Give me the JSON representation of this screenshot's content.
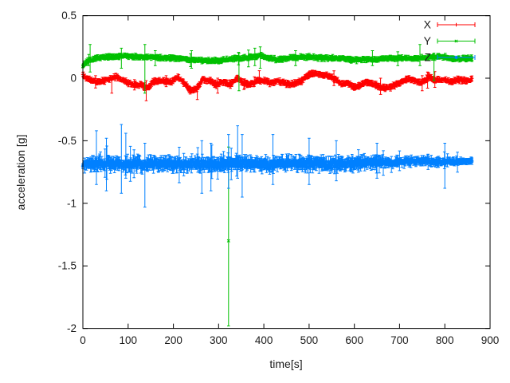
{
  "figure": {
    "background": "#ffffff",
    "border_color": "#000000",
    "text_color": "#1a1a1a"
  },
  "chart_data": {
    "type": "scatter",
    "style": "points-with-errorbars",
    "title": "",
    "xlabel": "time[s]",
    "ylabel": "acceleration [g]",
    "xlim": [
      0,
      900
    ],
    "ylim": [
      -2,
      0.5
    ],
    "grid": false,
    "xticks": [
      {
        "v": 0,
        "label": "0"
      },
      {
        "v": 100,
        "label": "100"
      },
      {
        "v": 200,
        "label": "200"
      },
      {
        "v": 300,
        "label": "300"
      },
      {
        "v": 400,
        "label": "400"
      },
      {
        "v": 500,
        "label": "500"
      },
      {
        "v": 600,
        "label": "600"
      },
      {
        "v": 700,
        "label": "700"
      },
      {
        "v": 800,
        "label": "800"
      },
      {
        "v": 900,
        "label": "900"
      }
    ],
    "yticks": [
      {
        "v": 0.5,
        "label": "0.5"
      },
      {
        "v": 0,
        "label": "0"
      },
      {
        "v": -0.5,
        "label": "-0.5"
      },
      {
        "v": -1,
        "label": "-1"
      },
      {
        "v": -1.5,
        "label": "-1.5"
      },
      {
        "v": -2,
        "label": "-2"
      }
    ],
    "legend": {
      "position": "top-right-inside",
      "entries": [
        "X",
        "Y",
        "Z"
      ]
    },
    "series": [
      {
        "name": "X",
        "color": "#ff0000",
        "marker": "plus",
        "t_start": 0,
        "t_end": 860,
        "step": 1,
        "trend": [
          [
            0,
            0.03
          ],
          [
            8,
            0
          ],
          [
            20,
            -0.02
          ],
          [
            35,
            -0.03
          ],
          [
            55,
            -0.01
          ],
          [
            75,
            0.01
          ],
          [
            90,
            -0.02
          ],
          [
            110,
            -0.05
          ],
          [
            130,
            -0.05
          ],
          [
            142,
            -0.08
          ],
          [
            155,
            -0.03
          ],
          [
            175,
            -0.02
          ],
          [
            195,
            -0.03
          ],
          [
            210,
            0.01
          ],
          [
            222,
            -0.03
          ],
          [
            238,
            -0.1
          ],
          [
            252,
            -0.08
          ],
          [
            265,
            -0.01
          ],
          [
            280,
            -0.02
          ],
          [
            295,
            -0.05
          ],
          [
            310,
            -0.03
          ],
          [
            325,
            -0.05
          ],
          [
            340,
            0
          ],
          [
            355,
            -0.04
          ],
          [
            370,
            -0.05
          ],
          [
            385,
            -0.02
          ],
          [
            400,
            -0.02
          ],
          [
            415,
            -0.04
          ],
          [
            430,
            -0.02
          ],
          [
            445,
            -0.04
          ],
          [
            460,
            -0.05
          ],
          [
            480,
            -0.03
          ],
          [
            495,
            0.02
          ],
          [
            510,
            0.04
          ],
          [
            525,
            0.03
          ],
          [
            540,
            0.02
          ],
          [
            558,
            -0.01
          ],
          [
            572,
            -0.05
          ],
          [
            585,
            -0.03
          ],
          [
            598,
            -0.07
          ],
          [
            612,
            -0.06
          ],
          [
            628,
            -0.03
          ],
          [
            645,
            -0.05
          ],
          [
            662,
            -0.08
          ],
          [
            680,
            -0.07
          ],
          [
            698,
            -0.04
          ],
          [
            715,
            -0.01
          ],
          [
            730,
            -0.01
          ],
          [
            748,
            -0.04
          ],
          [
            765,
            0.01
          ],
          [
            780,
            -0.02
          ],
          [
            795,
            -0.01
          ],
          [
            812,
            -0.03
          ],
          [
            830,
            -0.01
          ],
          [
            845,
            -0.02
          ],
          [
            860,
            -0.01
          ]
        ],
        "noise": 0.01,
        "errorbar_halfwidth": [
          0.006,
          0.024
        ],
        "spike_chance": 0.02,
        "spike_scale": 2.6,
        "spikes": [
          [
            64,
            -0.12,
            0.02
          ],
          [
            140,
            -0.18,
            -0.02
          ],
          [
            253,
            -0.17,
            -0.05
          ],
          [
            298,
            -0.12,
            0
          ],
          [
            390,
            -0.04,
            0.06
          ],
          [
            658,
            -0.13,
            0
          ],
          [
            750,
            -0.1,
            0.02
          ],
          [
            762,
            -0.08,
            0.05
          ]
        ],
        "outliers": []
      },
      {
        "name": "Y",
        "color": "#00c000",
        "marker": "cross",
        "t_start": 0,
        "t_end": 860,
        "step": 1,
        "trend": [
          [
            0,
            0.1
          ],
          [
            8,
            0.13
          ],
          [
            15,
            0.14
          ],
          [
            30,
            0.16
          ],
          [
            50,
            0.17
          ],
          [
            70,
            0.17
          ],
          [
            90,
            0.18
          ],
          [
            120,
            0.17
          ],
          [
            150,
            0.17
          ],
          [
            180,
            0.16
          ],
          [
            210,
            0.16
          ],
          [
            240,
            0.15
          ],
          [
            270,
            0.14
          ],
          [
            295,
            0.14
          ],
          [
            322,
            0.15
          ],
          [
            350,
            0.16
          ],
          [
            375,
            0.17
          ],
          [
            395,
            0.18
          ],
          [
            410,
            0.16
          ],
          [
            430,
            0.15
          ],
          [
            455,
            0.16
          ],
          [
            480,
            0.17
          ],
          [
            505,
            0.17
          ],
          [
            530,
            0.16
          ],
          [
            560,
            0.16
          ],
          [
            590,
            0.15
          ],
          [
            620,
            0.15
          ],
          [
            650,
            0.15
          ],
          [
            680,
            0.16
          ],
          [
            710,
            0.16
          ],
          [
            740,
            0.16
          ],
          [
            770,
            0.17
          ],
          [
            800,
            0.17
          ],
          [
            820,
            0.15
          ],
          [
            840,
            0.16
          ],
          [
            860,
            0.16
          ]
        ],
        "noise": 0.009,
        "errorbar_halfwidth": [
          0.006,
          0.022
        ],
        "spike_chance": 0.015,
        "spike_scale": 2.4,
        "spikes": [
          [
            16,
            0.05,
            0.27
          ],
          [
            85,
            0.08,
            0.24
          ],
          [
            137,
            -0.12,
            0.27
          ],
          [
            160,
            0.1,
            0.22
          ],
          [
            240,
            0.08,
            0.22
          ],
          [
            345,
            -0.1,
            0.2
          ],
          [
            380,
            0.1,
            0.24
          ],
          [
            392,
            0.08,
            0.25
          ],
          [
            470,
            0.1,
            0.22
          ],
          [
            640,
            0.1,
            0.22
          ],
          [
            745,
            0.1,
            0.27
          ],
          [
            776,
            -0.02,
            0.2
          ]
        ],
        "outliers": [
          {
            "t": 322,
            "v": -1.3,
            "bar": [
              -1.98,
              -0.55
            ]
          }
        ]
      },
      {
        "name": "Z",
        "color": "#0080ff",
        "marker": "star",
        "t_start": 0,
        "t_end": 860,
        "step": 1,
        "trend": [
          [
            0,
            -0.69
          ],
          [
            50,
            -0.68
          ],
          [
            100,
            -0.69
          ],
          [
            150,
            -0.68
          ],
          [
            200,
            -0.69
          ],
          [
            250,
            -0.68
          ],
          [
            300,
            -0.69
          ],
          [
            350,
            -0.68
          ],
          [
            400,
            -0.69
          ],
          [
            450,
            -0.68
          ],
          [
            500,
            -0.68
          ],
          [
            550,
            -0.69
          ],
          [
            600,
            -0.68
          ],
          [
            650,
            -0.67
          ],
          [
            700,
            -0.67
          ],
          [
            750,
            -0.66
          ],
          [
            800,
            -0.67
          ],
          [
            860,
            -0.66
          ]
        ],
        "noise": 0.03,
        "noise_profile": [
          [
            0,
            0.45
          ],
          [
            15,
            1
          ],
          [
            600,
            1
          ],
          [
            680,
            0.7
          ],
          [
            860,
            0.5
          ]
        ],
        "errorbar_halfwidth": [
          0.015,
          0.055
        ],
        "spike_chance": 0.035,
        "spike_scale": 2.3,
        "spikes": [
          [
            30,
            -0.85,
            -0.42
          ],
          [
            52,
            -0.9,
            -0.48
          ],
          [
            85,
            -0.92,
            -0.37
          ],
          [
            95,
            -0.8,
            -0.44
          ],
          [
            137,
            -1.03,
            -0.52
          ],
          [
            263,
            -0.92,
            -0.5
          ],
          [
            283,
            -0.9,
            -0.52
          ],
          [
            322,
            -0.88,
            -0.45
          ],
          [
            342,
            -0.8,
            -0.38
          ],
          [
            352,
            -0.95,
            -0.45
          ],
          [
            420,
            -0.85,
            -0.45
          ],
          [
            500,
            -0.85,
            -0.48
          ],
          [
            560,
            -0.82,
            -0.5
          ],
          [
            650,
            -0.8,
            -0.52
          ],
          [
            800,
            -0.88,
            -0.52
          ]
        ],
        "outliers": []
      }
    ]
  }
}
